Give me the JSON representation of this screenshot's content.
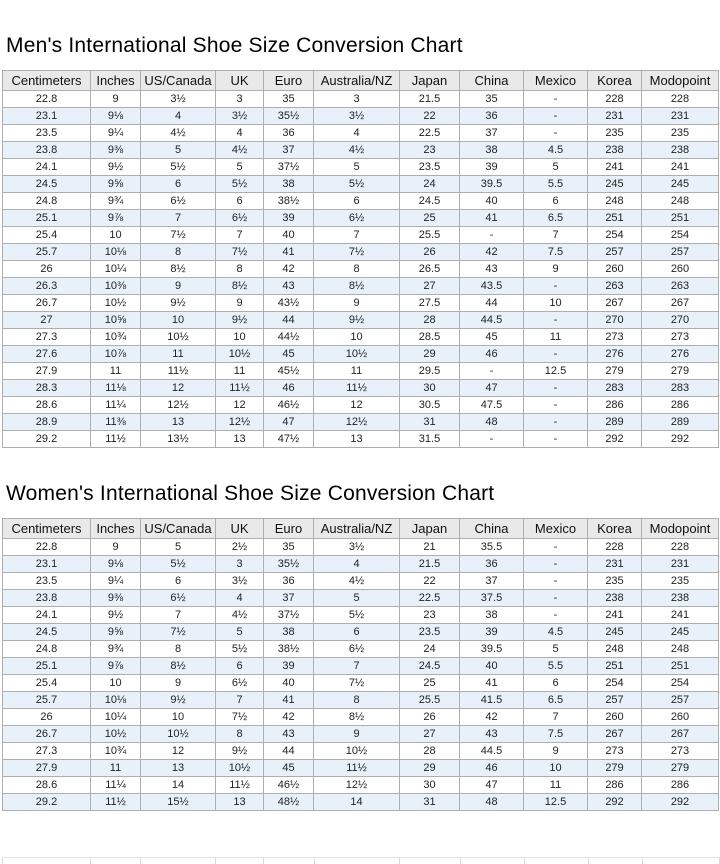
{
  "colors": {
    "header_bg": "#e9e9e9",
    "row_alt_bg": "#e8f1fa",
    "row_bg": "#ffffff",
    "border": "#aeaeae",
    "title_text": "#000000"
  },
  "tables": [
    {
      "title": "Men's International Shoe Size Conversion Chart",
      "headers": [
        "Centimeters",
        "Inches",
        "US/Canada",
        "UK",
        "Euro",
        "Australia/NZ",
        "Japan",
        "China",
        "Mexico",
        "Korea",
        "Modopoint"
      ],
      "rows": [
        [
          "22.8",
          "9",
          "3½",
          "3",
          "35",
          "3",
          "21.5",
          "35",
          "-",
          "228",
          "228"
        ],
        [
          "23.1",
          "9⅛",
          "4",
          "3½",
          "35½",
          "3½",
          "22",
          "36",
          "-",
          "231",
          "231"
        ],
        [
          "23.5",
          "9¼",
          "4½",
          "4",
          "36",
          "4",
          "22.5",
          "37",
          "-",
          "235",
          "235"
        ],
        [
          "23.8",
          "9⅜",
          "5",
          "4½",
          "37",
          "4½",
          "23",
          "38",
          "4.5",
          "238",
          "238"
        ],
        [
          "24.1",
          "9½",
          "5½",
          "5",
          "37½",
          "5",
          "23.5",
          "39",
          "5",
          "241",
          "241"
        ],
        [
          "24.5",
          "9⅝",
          "6",
          "5½",
          "38",
          "5½",
          "24",
          "39.5",
          "5.5",
          "245",
          "245"
        ],
        [
          "24.8",
          "9¾",
          "6½",
          "6",
          "38½",
          "6",
          "24.5",
          "40",
          "6",
          "248",
          "248"
        ],
        [
          "25.1",
          "9⅞",
          "7",
          "6½",
          "39",
          "6½",
          "25",
          "41",
          "6.5",
          "251",
          "251"
        ],
        [
          "25.4",
          "10",
          "7½",
          "7",
          "40",
          "7",
          "25.5",
          "-",
          "7",
          "254",
          "254"
        ],
        [
          "25.7",
          "10⅛",
          "8",
          "7½",
          "41",
          "7½",
          "26",
          "42",
          "7.5",
          "257",
          "257"
        ],
        [
          "26",
          "10¼",
          "8½",
          "8",
          "42",
          "8",
          "26.5",
          "43",
          "9",
          "260",
          "260"
        ],
        [
          "26.3",
          "10⅜",
          "9",
          "8½",
          "43",
          "8½",
          "27",
          "43.5",
          "-",
          "263",
          "263"
        ],
        [
          "26.7",
          "10½",
          "9½",
          "9",
          "43½",
          "9",
          "27.5",
          "44",
          "10",
          "267",
          "267"
        ],
        [
          "27",
          "10⅝",
          "10",
          "9½",
          "44",
          "9½",
          "28",
          "44.5",
          "-",
          "270",
          "270"
        ],
        [
          "27.3",
          "10¾",
          "10½",
          "10",
          "44½",
          "10",
          "28.5",
          "45",
          "11",
          "273",
          "273"
        ],
        [
          "27.6",
          "10⅞",
          "11",
          "10½",
          "45",
          "10½",
          "29",
          "46",
          "-",
          "276",
          "276"
        ],
        [
          "27.9",
          "11",
          "11½",
          "11",
          "45½",
          "11",
          "29.5",
          "-",
          "12.5",
          "279",
          "279"
        ],
        [
          "28.3",
          "11⅛",
          "12",
          "11½",
          "46",
          "11½",
          "30",
          "47",
          "-",
          "283",
          "283"
        ],
        [
          "28.6",
          "11¼",
          "12½",
          "12",
          "46½",
          "12",
          "30.5",
          "47.5",
          "-",
          "286",
          "286"
        ],
        [
          "28.9",
          "11⅜",
          "13",
          "12½",
          "47",
          "12½",
          "31",
          "48",
          "-",
          "289",
          "289"
        ],
        [
          "29.2",
          "11½",
          "13½",
          "13",
          "47½",
          "13",
          "31.5",
          "-",
          "-",
          "292",
          "292"
        ]
      ]
    },
    {
      "title": "Women's International Shoe Size Conversion Chart",
      "headers": [
        "Centimeters",
        "Inches",
        "US/Canada",
        "UK",
        "Euro",
        "Australia/NZ",
        "Japan",
        "China",
        "Mexico",
        "Korea",
        "Modopoint"
      ],
      "rows": [
        [
          "22.8",
          "9",
          "5",
          "2½",
          "35",
          "3½",
          "21",
          "35.5",
          "-",
          "228",
          "228"
        ],
        [
          "23.1",
          "9⅛",
          "5½",
          "3",
          "35½",
          "4",
          "21.5",
          "36",
          "-",
          "231",
          "231"
        ],
        [
          "23.5",
          "9¼",
          "6",
          "3½",
          "36",
          "4½",
          "22",
          "37",
          "-",
          "235",
          "235"
        ],
        [
          "23.8",
          "9⅜",
          "6½",
          "4",
          "37",
          "5",
          "22.5",
          "37.5",
          "-",
          "238",
          "238"
        ],
        [
          "24.1",
          "9½",
          "7",
          "4½",
          "37½",
          "5½",
          "23",
          "38",
          "-",
          "241",
          "241"
        ],
        [
          "24.5",
          "9⅝",
          "7½",
          "5",
          "38",
          "6",
          "23.5",
          "39",
          "4.5",
          "245",
          "245"
        ],
        [
          "24.8",
          "9¾",
          "8",
          "5½",
          "38½",
          "6½",
          "24",
          "39.5",
          "5",
          "248",
          "248"
        ],
        [
          "25.1",
          "9⅞",
          "8½",
          "6",
          "39",
          "7",
          "24.5",
          "40",
          "5.5",
          "251",
          "251"
        ],
        [
          "25.4",
          "10",
          "9",
          "6½",
          "40",
          "7½",
          "25",
          "41",
          "6",
          "254",
          "254"
        ],
        [
          "25.7",
          "10⅛",
          "9½",
          "7",
          "41",
          "8",
          "25.5",
          "41.5",
          "6.5",
          "257",
          "257"
        ],
        [
          "26",
          "10¼",
          "10",
          "7½",
          "42",
          "8½",
          "26",
          "42",
          "7",
          "260",
          "260"
        ],
        [
          "26.7",
          "10½",
          "10½",
          "8",
          "43",
          "9",
          "27",
          "43",
          "7.5",
          "267",
          "267"
        ],
        [
          "27.3",
          "10¾",
          "12",
          "9½",
          "44",
          "10½",
          "28",
          "44.5",
          "9",
          "273",
          "273"
        ],
        [
          "27.9",
          "11",
          "13",
          "10½",
          "45",
          "11½",
          "29",
          "46",
          "10",
          "279",
          "279"
        ],
        [
          "28.6",
          "11¼",
          "14",
          "11½",
          "46½",
          "12½",
          "30",
          "47",
          "11",
          "286",
          "286"
        ],
        [
          "29.2",
          "11½",
          "15½",
          "13",
          "48½",
          "14",
          "31",
          "48",
          "12.5",
          "292",
          "292"
        ]
      ]
    }
  ]
}
